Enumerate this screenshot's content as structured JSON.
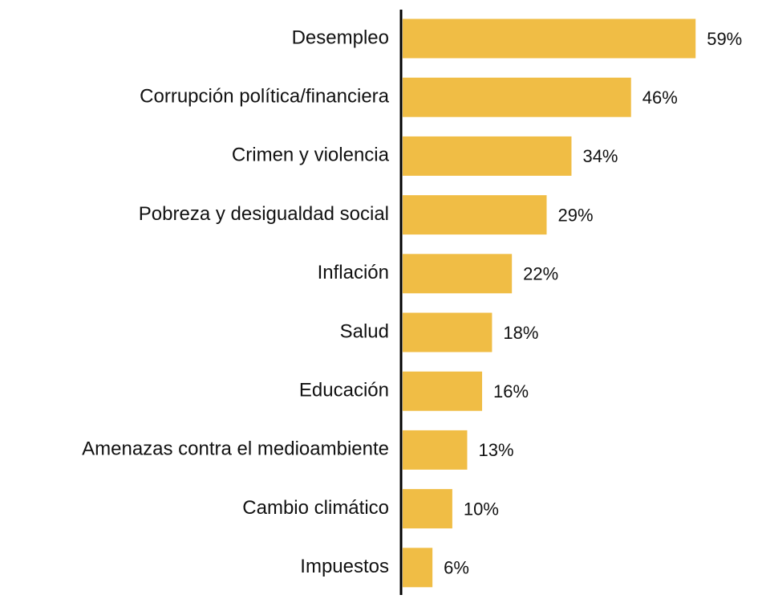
{
  "chart_data": {
    "type": "hbar",
    "categories": [
      "Desempleo",
      "Corrupción política/financiera",
      "Crimen y violencia",
      "Pobreza y desigualdad social",
      "Inflación",
      "Salud",
      "Educación",
      "Amenazas contra el medioambiente",
      "Cambio climático",
      "Impuestos"
    ],
    "values": [
      59,
      46,
      34,
      29,
      22,
      18,
      16,
      13,
      10,
      6
    ],
    "value_labels": [
      "59%",
      "46%",
      "34%",
      "29%",
      "22%",
      "18%",
      "16%",
      "13%",
      "10%",
      "6%"
    ],
    "color": "#f0bd45"
  }
}
